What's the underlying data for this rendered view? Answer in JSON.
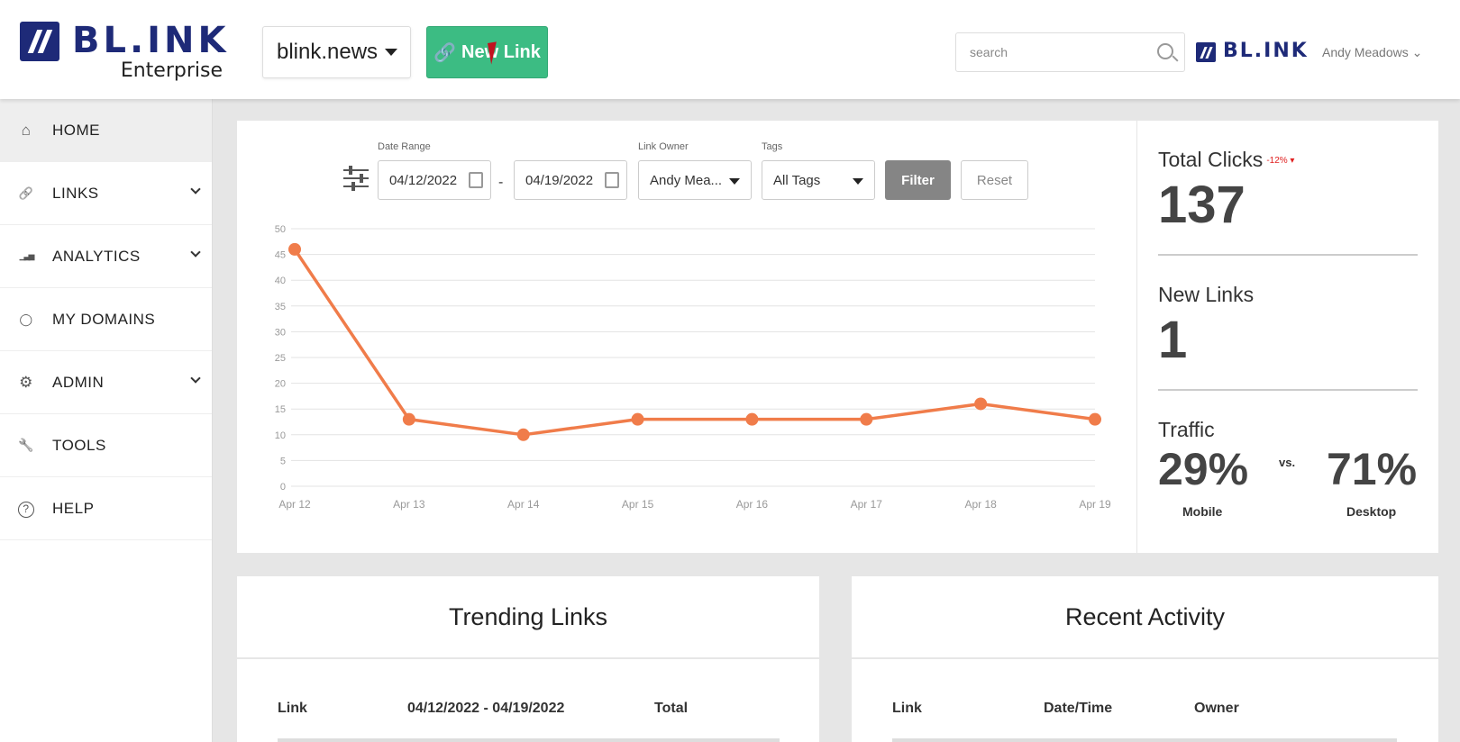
{
  "header": {
    "logo_text": "BL.INK",
    "logo_sub": "Enterprise",
    "domain_select": "blink.news",
    "new_link_label": "New Link",
    "search_placeholder": "search",
    "logo_small_text": "BL.INK",
    "user_menu": "Andy Meadows"
  },
  "sidebar": {
    "items": [
      {
        "label": "HOME",
        "icon": "home-icon",
        "glyph": "⌂",
        "chevron": false
      },
      {
        "label": "LINKS",
        "icon": "link-icon",
        "glyph": "🔗",
        "chevron": true
      },
      {
        "label": "ANALYTICS",
        "icon": "bar-chart-icon",
        "glyph": "▁▃▅",
        "chevron": true
      },
      {
        "label": "MY DOMAINS",
        "icon": "map-pin-icon",
        "glyph": "◯",
        "chevron": false
      },
      {
        "label": "ADMIN",
        "icon": "gear-icon",
        "glyph": "⚙",
        "chevron": true
      },
      {
        "label": "TOOLS",
        "icon": "wrench-icon",
        "glyph": "🔧",
        "chevron": false
      },
      {
        "label": "HELP",
        "icon": "help-icon",
        "glyph": "?",
        "chevron": false
      }
    ]
  },
  "filters": {
    "date_range_label": "Date Range",
    "start_date": "04/12/2022",
    "end_date": "04/19/2022",
    "link_owner_label": "Link Owner",
    "link_owner_value": "Andy Mea...",
    "tags_label": "Tags",
    "tags_value": "All Tags",
    "filter_label": "Filter",
    "reset_label": "Reset",
    "date_separator": "-"
  },
  "chart_data": {
    "type": "line",
    "title": "",
    "xlabel": "",
    "ylabel": "",
    "categories": [
      "Apr 12",
      "Apr 13",
      "Apr 14",
      "Apr 15",
      "Apr 16",
      "Apr 17",
      "Apr 18",
      "Apr 19"
    ],
    "values": [
      46,
      13,
      10,
      13,
      13,
      13,
      16,
      13
    ],
    "ylim": [
      0,
      50
    ],
    "yticks": [
      0,
      5,
      10,
      15,
      20,
      25,
      30,
      35,
      40,
      45,
      50
    ],
    "grid": true,
    "color": "#f07c4a"
  },
  "stats": {
    "total_clicks_label": "Total Clicks",
    "total_clicks_delta": "-12% ▾",
    "total_clicks_value": "137",
    "new_links_label": "New Links",
    "new_links_value": "1",
    "traffic_label": "Traffic",
    "mobile_pct": "29%",
    "mobile_label": "Mobile",
    "vs_label": "vs.",
    "desktop_pct": "71%",
    "desktop_label": "Desktop"
  },
  "trending": {
    "title": "Trending Links",
    "columns": [
      "Link",
      "04/12/2022 - 04/19/2022",
      "Total"
    ]
  },
  "activity": {
    "title": "Recent Activity",
    "columns": [
      "Link",
      "Date/Time",
      "Owner"
    ]
  }
}
